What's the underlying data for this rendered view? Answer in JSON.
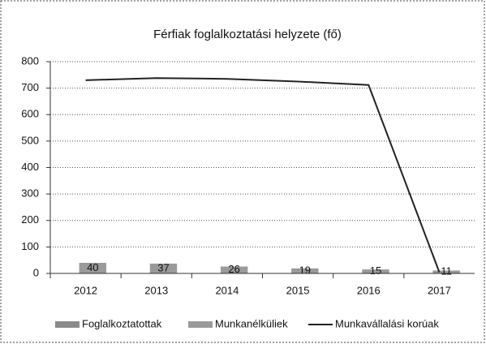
{
  "chart_data": {
    "type": "combo",
    "title": "Férfiak foglalkoztatási helyzete (fő)",
    "categories": [
      "2012",
      "2013",
      "2014",
      "2015",
      "2016",
      "2017"
    ],
    "series": [
      {
        "name": "Foglalkoztatottak",
        "type": "bar",
        "color": "#8a8a8a",
        "values": [
          null,
          null,
          null,
          null,
          null,
          null
        ]
      },
      {
        "name": "Munkanélküliek",
        "type": "bar",
        "color": "#9a9a9a",
        "values": [
          40,
          37,
          26,
          19,
          15,
          11
        ]
      },
      {
        "name": "Munkavállalási korúak",
        "type": "line",
        "color": "#222222",
        "values": [
          730,
          738,
          735,
          725,
          712,
          5
        ]
      }
    ],
    "ylim": [
      0,
      800
    ],
    "yticks": [
      0,
      100,
      200,
      300,
      400,
      500,
      600,
      700,
      800
    ],
    "grid": true,
    "legend": "bottom"
  }
}
